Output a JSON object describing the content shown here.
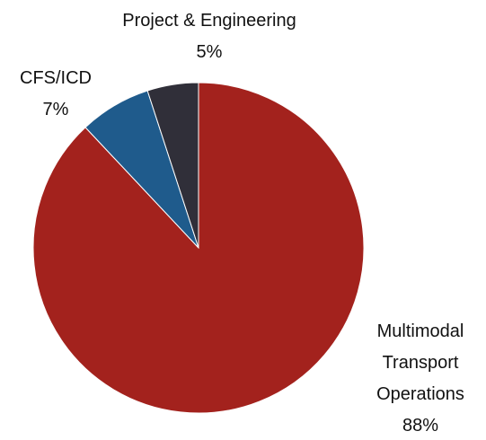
{
  "chart_data": {
    "type": "pie",
    "categories": [
      "Multimodal Transport Operations",
      "CFS/ICD",
      "Project & Engineering"
    ],
    "values": [
      88,
      7,
      5
    ],
    "value_labels": [
      "88%",
      "7%",
      "5%"
    ],
    "colors": [
      "#a3221d",
      "#1f5b8c",
      "#302f39"
    ]
  }
}
